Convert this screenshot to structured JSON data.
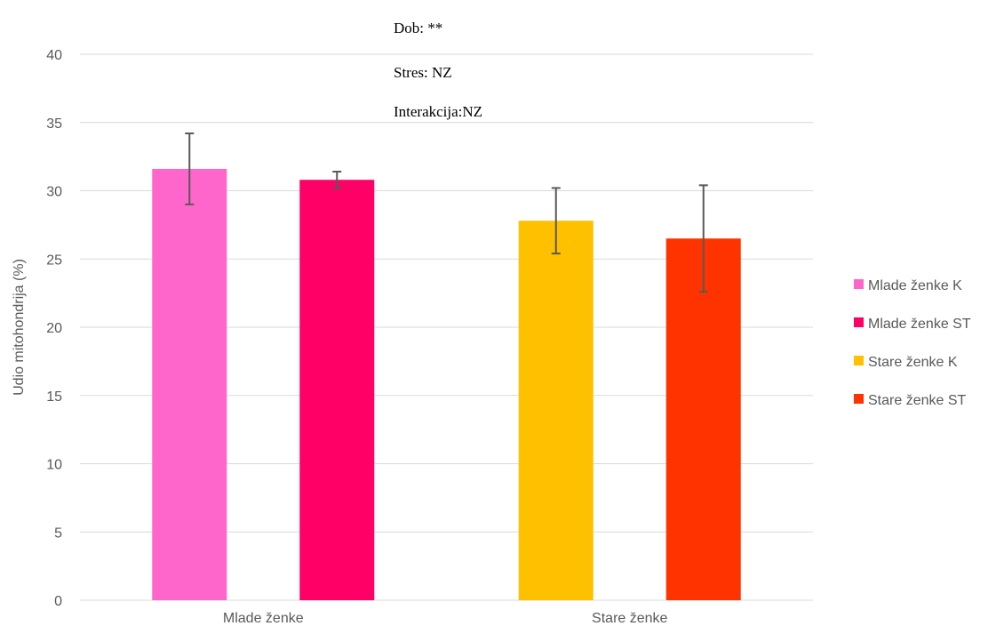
{
  "chart_data": {
    "type": "bar",
    "title": "",
    "xlabel": "",
    "ylabel": "Udio mitohondrija (%)",
    "ylim": [
      0,
      40
    ],
    "yticks": [
      0,
      5,
      10,
      15,
      20,
      25,
      30,
      35,
      40
    ],
    "grid": true,
    "legend_position": "right",
    "categories": [
      "Mlade ženke",
      "Stare ženke"
    ],
    "series": [
      {
        "name": "Mlade ženke K",
        "color": "#FF66CC",
        "values": [
          31.6,
          null
        ],
        "errors": [
          2.6,
          null
        ]
      },
      {
        "name": "Mlade ženke ST",
        "color": "#FF0066",
        "values": [
          30.8,
          null
        ],
        "errors": [
          0.6,
          null
        ]
      },
      {
        "name": "Stare ženke K",
        "color": "#FFC000",
        "values": [
          null,
          27.8
        ],
        "errors": [
          null,
          2.4
        ]
      },
      {
        "name": "Stare ženke ST",
        "color": "#FF3300",
        "values": [
          null,
          26.5
        ],
        "errors": [
          null,
          3.9
        ]
      }
    ],
    "annotations": [
      "Dob: **",
      "Stres: NZ",
      "Interakcija:NZ"
    ]
  }
}
